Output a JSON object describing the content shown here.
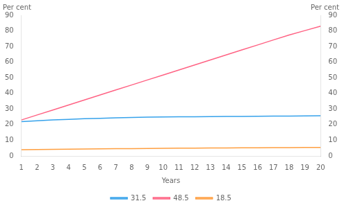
{
  "chart_data": {
    "type": "line",
    "x": [
      1,
      2,
      3,
      4,
      5,
      6,
      7,
      8,
      9,
      10,
      11,
      12,
      13,
      14,
      15,
      16,
      17,
      18,
      19,
      20
    ],
    "xlabel": "Years",
    "ylabel": "Per cent",
    "y2label": "Per cent",
    "xlim": [
      1,
      20
    ],
    "xticks": [
      1,
      2,
      3,
      4,
      5,
      6,
      7,
      8,
      9,
      10,
      11,
      12,
      13,
      14,
      15,
      16,
      17,
      18,
      19,
      20
    ],
    "ylim": [
      0,
      90
    ],
    "yticks": [
      0,
      10,
      20,
      30,
      40,
      50,
      60,
      70,
      80,
      90
    ],
    "y2lim": [
      0,
      90
    ],
    "y2ticks": [
      0,
      10,
      20,
      30,
      40,
      50,
      60,
      70,
      80,
      90
    ],
    "grid": false,
    "legend": "bottom",
    "series": [
      {
        "name": "31.5",
        "values": [
          22.0,
          22.5,
          23.0,
          23.4,
          23.8,
          24.1,
          24.4,
          24.6,
          24.8,
          24.9,
          25.0,
          25.1,
          25.2,
          25.3,
          25.3,
          25.4,
          25.5,
          25.5,
          25.6,
          25.7
        ]
      },
      {
        "name": "48.5",
        "values": [
          23.0,
          26.2,
          29.4,
          32.6,
          35.8,
          39.0,
          42.2,
          45.4,
          48.6,
          51.8,
          55.0,
          58.2,
          61.4,
          64.6,
          67.8,
          71.0,
          74.2,
          77.4,
          80.2,
          83.0
        ]
      },
      {
        "name": "18.5",
        "values": [
          4.0,
          4.1,
          4.2,
          4.3,
          4.4,
          4.5,
          4.6,
          4.7,
          4.8,
          4.9,
          5.0,
          5.0,
          5.1,
          5.1,
          5.2,
          5.2,
          5.3,
          5.3,
          5.4,
          5.4
        ]
      }
    ]
  }
}
